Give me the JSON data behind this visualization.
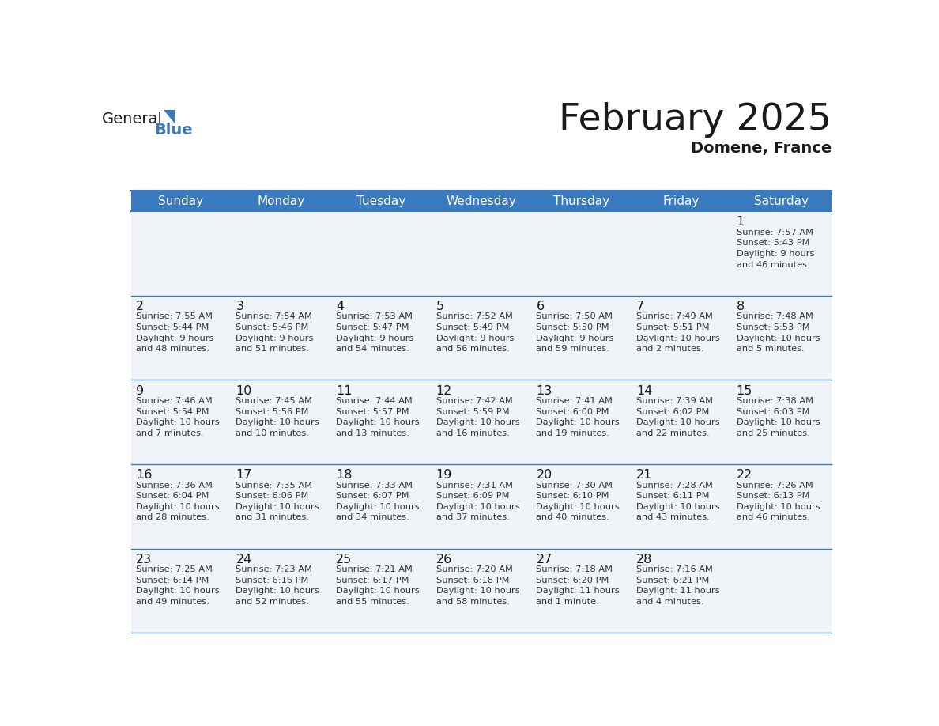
{
  "title": "February 2025",
  "subtitle": "Domene, France",
  "header_bg_color": "#3a7abf",
  "header_text_color": "#ffffff",
  "cell_bg_color": "#f0f4f8",
  "border_color": "#3a7abf",
  "title_color": "#1a1a1a",
  "subtitle_color": "#1a1a1a",
  "day_number_color": "#1a1a1a",
  "info_text_color": "#333333",
  "days_of_week": [
    "Sunday",
    "Monday",
    "Tuesday",
    "Wednesday",
    "Thursday",
    "Friday",
    "Saturday"
  ],
  "calendar": [
    [
      null,
      null,
      null,
      null,
      null,
      null,
      {
        "day": "1",
        "sunrise": "7:57 AM",
        "sunset": "5:43 PM",
        "daylight": "9 hours\nand 46 minutes."
      }
    ],
    [
      {
        "day": "2",
        "sunrise": "7:55 AM",
        "sunset": "5:44 PM",
        "daylight": "9 hours\nand 48 minutes."
      },
      {
        "day": "3",
        "sunrise": "7:54 AM",
        "sunset": "5:46 PM",
        "daylight": "9 hours\nand 51 minutes."
      },
      {
        "day": "4",
        "sunrise": "7:53 AM",
        "sunset": "5:47 PM",
        "daylight": "9 hours\nand 54 minutes."
      },
      {
        "day": "5",
        "sunrise": "7:52 AM",
        "sunset": "5:49 PM",
        "daylight": "9 hours\nand 56 minutes."
      },
      {
        "day": "6",
        "sunrise": "7:50 AM",
        "sunset": "5:50 PM",
        "daylight": "9 hours\nand 59 minutes."
      },
      {
        "day": "7",
        "sunrise": "7:49 AM",
        "sunset": "5:51 PM",
        "daylight": "10 hours\nand 2 minutes."
      },
      {
        "day": "8",
        "sunrise": "7:48 AM",
        "sunset": "5:53 PM",
        "daylight": "10 hours\nand 5 minutes."
      }
    ],
    [
      {
        "day": "9",
        "sunrise": "7:46 AM",
        "sunset": "5:54 PM",
        "daylight": "10 hours\nand 7 minutes."
      },
      {
        "day": "10",
        "sunrise": "7:45 AM",
        "sunset": "5:56 PM",
        "daylight": "10 hours\nand 10 minutes."
      },
      {
        "day": "11",
        "sunrise": "7:44 AM",
        "sunset": "5:57 PM",
        "daylight": "10 hours\nand 13 minutes."
      },
      {
        "day": "12",
        "sunrise": "7:42 AM",
        "sunset": "5:59 PM",
        "daylight": "10 hours\nand 16 minutes."
      },
      {
        "day": "13",
        "sunrise": "7:41 AM",
        "sunset": "6:00 PM",
        "daylight": "10 hours\nand 19 minutes."
      },
      {
        "day": "14",
        "sunrise": "7:39 AM",
        "sunset": "6:02 PM",
        "daylight": "10 hours\nand 22 minutes."
      },
      {
        "day": "15",
        "sunrise": "7:38 AM",
        "sunset": "6:03 PM",
        "daylight": "10 hours\nand 25 minutes."
      }
    ],
    [
      {
        "day": "16",
        "sunrise": "7:36 AM",
        "sunset": "6:04 PM",
        "daylight": "10 hours\nand 28 minutes."
      },
      {
        "day": "17",
        "sunrise": "7:35 AM",
        "sunset": "6:06 PM",
        "daylight": "10 hours\nand 31 minutes."
      },
      {
        "day": "18",
        "sunrise": "7:33 AM",
        "sunset": "6:07 PM",
        "daylight": "10 hours\nand 34 minutes."
      },
      {
        "day": "19",
        "sunrise": "7:31 AM",
        "sunset": "6:09 PM",
        "daylight": "10 hours\nand 37 minutes."
      },
      {
        "day": "20",
        "sunrise": "7:30 AM",
        "sunset": "6:10 PM",
        "daylight": "10 hours\nand 40 minutes."
      },
      {
        "day": "21",
        "sunrise": "7:28 AM",
        "sunset": "6:11 PM",
        "daylight": "10 hours\nand 43 minutes."
      },
      {
        "day": "22",
        "sunrise": "7:26 AM",
        "sunset": "6:13 PM",
        "daylight": "10 hours\nand 46 minutes."
      }
    ],
    [
      {
        "day": "23",
        "sunrise": "7:25 AM",
        "sunset": "6:14 PM",
        "daylight": "10 hours\nand 49 minutes."
      },
      {
        "day": "24",
        "sunrise": "7:23 AM",
        "sunset": "6:16 PM",
        "daylight": "10 hours\nand 52 minutes."
      },
      {
        "day": "25",
        "sunrise": "7:21 AM",
        "sunset": "6:17 PM",
        "daylight": "10 hours\nand 55 minutes."
      },
      {
        "day": "26",
        "sunrise": "7:20 AM",
        "sunset": "6:18 PM",
        "daylight": "10 hours\nand 58 minutes."
      },
      {
        "day": "27",
        "sunrise": "7:18 AM",
        "sunset": "6:20 PM",
        "daylight": "11 hours\nand 1 minute."
      },
      {
        "day": "28",
        "sunrise": "7:16 AM",
        "sunset": "6:21 PM",
        "daylight": "11 hours\nand 4 minutes."
      },
      null
    ]
  ],
  "logo_text_general": "General",
  "logo_text_blue": "Blue",
  "logo_triangle_color": "#3a7abf",
  "logo_general_color": "#1a1a1a"
}
